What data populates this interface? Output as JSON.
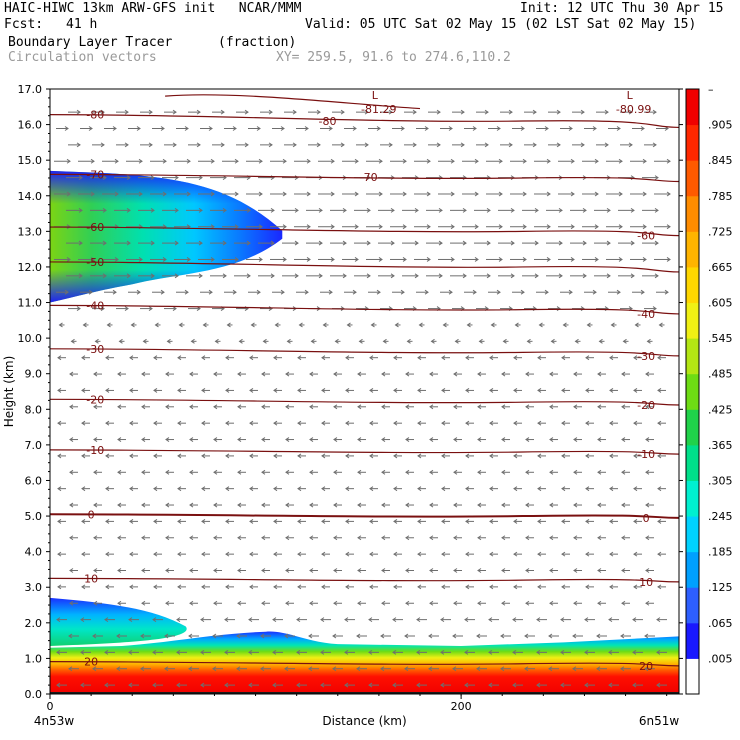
{
  "header": {
    "model_line": "HAIC-HIWC 13km ARW-GFS init   NCAR/MMM",
    "init": "Init: 12 UTC Thu 30 Apr 15",
    "fcst_label": "Fcst:",
    "fcst_value": "41 h",
    "valid": "Valid: 05 UTC Sat 02 May 15 (02 LST Sat 02 May 15)",
    "field_name": "Boundary Layer Tracer",
    "field_units": "(fraction)",
    "vector_label": "Circulation vectors",
    "xy_label": "XY= 259.5, 91.6 to 274.6,110.2"
  },
  "chart_data": {
    "type": "heatmap",
    "xlabel": "Distance (km)",
    "ylabel": "Height (km)",
    "xlim": [
      0,
      306
    ],
    "ylim": [
      0,
      17
    ],
    "x_ticks": [
      {
        "value": 0,
        "label": "0"
      },
      {
        "value": 200,
        "label": "200"
      }
    ],
    "y_ticks": [
      0.0,
      1.0,
      2.0,
      3.0,
      4.0,
      5.0,
      6.0,
      7.0,
      8.0,
      9.0,
      10.0,
      11.0,
      12.0,
      13.0,
      14.0,
      15.0,
      16.0,
      17.0
    ],
    "y_tick_labels": [
      "0.0",
      "1.0",
      "2.0",
      "3.0",
      "4.0",
      "5.0",
      "6.0",
      "7.0",
      "8.0",
      "9.0",
      "10.0",
      "11.0",
      "12.0",
      "13.0",
      "14.0",
      "15.0",
      "16.0",
      "17.0"
    ],
    "x_end_labels": {
      "left": "4n53w",
      "right": "6n51w"
    },
    "colorbar": {
      "labels": [
        "–",
        ".905",
        ".845",
        ".785",
        ".725",
        ".665",
        ".605",
        ".545",
        ".485",
        ".425",
        ".365",
        ".305",
        ".245",
        ".185",
        ".125",
        ".065",
        ".005"
      ],
      "colors": [
        "#ffffff",
        "#1919ff",
        "#2e5fff",
        "#00a0ff",
        "#00d2ff",
        "#00f0d0",
        "#00e08a",
        "#20d24a",
        "#6edc14",
        "#b4e614",
        "#f0f014",
        "#ffd700",
        "#ffb400",
        "#ff8c00",
        "#ff5a00",
        "#ff2800",
        "#f00000"
      ]
    },
    "tracer_regions": [
      {
        "name": "upper plume",
        "x_km": [
          0,
          113
        ],
        "y_km": [
          11.0,
          14.7
        ],
        "max_fraction": 0.905
      },
      {
        "name": "boundary layer",
        "x_km": [
          0,
          306
        ],
        "y_km": [
          0.0,
          2.7
        ],
        "max_fraction": 0.965
      }
    ],
    "temperature_contours": [
      {
        "value": 20,
        "label": "20",
        "y_km": 0.85
      },
      {
        "value": 10,
        "label": "10",
        "y_km": 3.2
      },
      {
        "value": 0,
        "label": "0",
        "y_km": 5.0
      },
      {
        "value": -10,
        "label": "-10",
        "y_km": 6.8
      },
      {
        "value": -20,
        "label": "-20",
        "y_km": 8.2
      },
      {
        "value": -30,
        "label": "-30",
        "y_km": 9.6
      },
      {
        "value": -40,
        "label": "-40",
        "y_km": 10.8
      },
      {
        "value": -50,
        "label": "-50",
        "y_km": 12.0
      },
      {
        "value": -60,
        "label": "-60",
        "y_km": 13.0
      },
      {
        "value": -70,
        "label": "-70",
        "y_km": 14.5
      },
      {
        "value": -80,
        "label": "-80",
        "y_km": 16.1
      }
    ],
    "minima": [
      {
        "label": "L",
        "value": "-81.29",
        "x_km": 158,
        "y_km": 16.6
      },
      {
        "label": "L",
        "value": "-80.99",
        "x_km": 282,
        "y_km": 16.6
      }
    ],
    "vector_field": {
      "upper_level_flow": "eastward above 10.5 km",
      "lower_level_flow": "westward below 10 km"
    }
  }
}
